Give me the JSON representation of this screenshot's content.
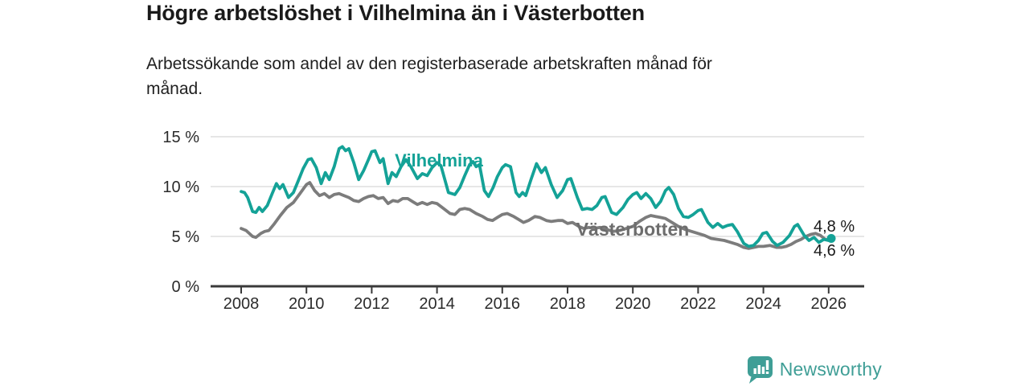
{
  "header": {
    "title": "Högre arbetslöshet i Vilhelmina än i Västerbotten",
    "subtitle": "Arbetssökande som andel av den registerbaserade arbetskraften månad för\nmånad."
  },
  "branding": {
    "logo_text": "Newsworthy",
    "logo_icon": "bar-chart-speech-bubble",
    "color": "#3f9e96"
  },
  "chart_data": {
    "type": "line",
    "title": "Högre arbetslöshet i Vilhelmina än i Västerbotten",
    "subtitle": "Arbetssökande som andel av den registerbaserade arbetskraften månad för månad.",
    "unit": "%",
    "grid": "horizontal",
    "legend": "inline-labels",
    "x_axis": {
      "ticks": [
        "2008",
        "2010",
        "2012",
        "2014",
        "2016",
        "2018",
        "2020",
        "2022",
        "2024",
        "2026"
      ],
      "tick_years": [
        2008,
        2010,
        2012,
        2014,
        2016,
        2018,
        2020,
        2022,
        2024,
        2026
      ],
      "range_years": [
        2007.1,
        2027.1
      ]
    },
    "y_axis": {
      "tick_labels": [
        "0 %",
        "5 %",
        "10 %",
        "15 %"
      ],
      "tick_values": [
        0,
        5,
        10,
        15
      ],
      "range": [
        0,
        16.6
      ]
    },
    "axis_colors": {
      "grid": "#dedede",
      "axis": "#3a3a3a",
      "tick_text": "#2b2b2b"
    },
    "series": [
      {
        "name": "Vilhelmina",
        "color": "#14a297",
        "label_color": "#14a297",
        "end_label": "4,8 %",
        "end_value": 4.8,
        "end_dot": true,
        "points": [
          [
            2008.0,
            9.5
          ],
          [
            2008.1,
            9.4
          ],
          [
            2008.2,
            8.9
          ],
          [
            2008.35,
            7.5
          ],
          [
            2008.45,
            7.4
          ],
          [
            2008.55,
            7.9
          ],
          [
            2008.65,
            7.5
          ],
          [
            2008.8,
            8.1
          ],
          [
            2008.95,
            9.3
          ],
          [
            2009.08,
            10.3
          ],
          [
            2009.18,
            9.8
          ],
          [
            2009.28,
            10.2
          ],
          [
            2009.45,
            8.9
          ],
          [
            2009.6,
            9.4
          ],
          [
            2009.75,
            10.6
          ],
          [
            2009.9,
            11.8
          ],
          [
            2010.05,
            12.7
          ],
          [
            2010.15,
            12.8
          ],
          [
            2010.3,
            11.9
          ],
          [
            2010.45,
            10.3
          ],
          [
            2010.58,
            11.4
          ],
          [
            2010.7,
            10.7
          ],
          [
            2010.85,
            12.0
          ],
          [
            2011.0,
            13.8
          ],
          [
            2011.1,
            14.0
          ],
          [
            2011.2,
            13.6
          ],
          [
            2011.3,
            13.8
          ],
          [
            2011.45,
            12.4
          ],
          [
            2011.6,
            10.7
          ],
          [
            2011.75,
            11.6
          ],
          [
            2011.9,
            12.7
          ],
          [
            2012.0,
            13.5
          ],
          [
            2012.1,
            13.6
          ],
          [
            2012.25,
            12.4
          ],
          [
            2012.35,
            12.8
          ],
          [
            2012.5,
            10.3
          ],
          [
            2012.62,
            11.4
          ],
          [
            2012.75,
            11.0
          ],
          [
            2012.9,
            12.0
          ],
          [
            2013.05,
            12.7
          ],
          [
            2013.2,
            12.0
          ],
          [
            2013.4,
            10.8
          ],
          [
            2013.55,
            11.3
          ],
          [
            2013.7,
            11.1
          ],
          [
            2013.85,
            11.9
          ],
          [
            2014.0,
            12.4
          ],
          [
            2014.12,
            12.1
          ],
          [
            2014.35,
            9.4
          ],
          [
            2014.55,
            9.2
          ],
          [
            2014.7,
            9.9
          ],
          [
            2014.85,
            11.1
          ],
          [
            2015.0,
            12.2
          ],
          [
            2015.1,
            12.5
          ],
          [
            2015.2,
            12.0
          ],
          [
            2015.3,
            12.2
          ],
          [
            2015.45,
            9.6
          ],
          [
            2015.58,
            9.0
          ],
          [
            2015.72,
            9.9
          ],
          [
            2015.85,
            11.0
          ],
          [
            2016.0,
            11.9
          ],
          [
            2016.1,
            12.2
          ],
          [
            2016.25,
            12.0
          ],
          [
            2016.42,
            9.4
          ],
          [
            2016.52,
            9.0
          ],
          [
            2016.62,
            9.4
          ],
          [
            2016.72,
            9.1
          ],
          [
            2016.88,
            10.7
          ],
          [
            2017.05,
            12.3
          ],
          [
            2017.2,
            11.4
          ],
          [
            2017.32,
            11.9
          ],
          [
            2017.5,
            10.2
          ],
          [
            2017.68,
            8.9
          ],
          [
            2017.85,
            9.6
          ],
          [
            2018.0,
            10.7
          ],
          [
            2018.1,
            10.8
          ],
          [
            2018.3,
            8.9
          ],
          [
            2018.45,
            7.7
          ],
          [
            2018.6,
            7.8
          ],
          [
            2018.75,
            7.7
          ],
          [
            2018.9,
            8.1
          ],
          [
            2019.05,
            8.9
          ],
          [
            2019.15,
            9.0
          ],
          [
            2019.35,
            7.4
          ],
          [
            2019.5,
            7.2
          ],
          [
            2019.7,
            7.9
          ],
          [
            2019.85,
            8.7
          ],
          [
            2020.0,
            9.2
          ],
          [
            2020.12,
            9.4
          ],
          [
            2020.25,
            8.8
          ],
          [
            2020.4,
            9.3
          ],
          [
            2020.55,
            8.8
          ],
          [
            2020.7,
            7.9
          ],
          [
            2020.85,
            8.5
          ],
          [
            2021.0,
            9.6
          ],
          [
            2021.1,
            9.9
          ],
          [
            2021.25,
            9.2
          ],
          [
            2021.4,
            7.8
          ],
          [
            2021.55,
            7.0
          ],
          [
            2021.7,
            6.9
          ],
          [
            2021.85,
            7.2
          ],
          [
            2022.0,
            7.6
          ],
          [
            2022.1,
            7.7
          ],
          [
            2022.3,
            6.4
          ],
          [
            2022.45,
            5.9
          ],
          [
            2022.6,
            6.3
          ],
          [
            2022.75,
            5.9
          ],
          [
            2022.9,
            6.1
          ],
          [
            2023.05,
            6.2
          ],
          [
            2023.2,
            5.5
          ],
          [
            2023.4,
            4.3
          ],
          [
            2023.55,
            4.0
          ],
          [
            2023.7,
            4.1
          ],
          [
            2023.85,
            4.6
          ],
          [
            2023.98,
            5.3
          ],
          [
            2024.1,
            5.4
          ],
          [
            2024.28,
            4.5
          ],
          [
            2024.42,
            4.1
          ],
          [
            2024.6,
            4.4
          ],
          [
            2024.8,
            5.1
          ],
          [
            2024.95,
            6.0
          ],
          [
            2025.05,
            6.2
          ],
          [
            2025.25,
            5.1
          ],
          [
            2025.4,
            4.6
          ],
          [
            2025.55,
            4.9
          ],
          [
            2025.7,
            4.4
          ],
          [
            2025.85,
            4.7
          ],
          [
            2026.0,
            4.6
          ],
          [
            2026.08,
            4.8
          ]
        ]
      },
      {
        "name": "Västerbotten",
        "color": "#7c7c7c",
        "label_color": "#6d6d6d",
        "end_label": "4,6 %",
        "end_value": 4.6,
        "end_dot": false,
        "points": [
          [
            2008.0,
            5.8
          ],
          [
            2008.15,
            5.6
          ],
          [
            2008.35,
            5.0
          ],
          [
            2008.45,
            4.9
          ],
          [
            2008.6,
            5.3
          ],
          [
            2008.72,
            5.5
          ],
          [
            2008.85,
            5.6
          ],
          [
            2009.0,
            6.2
          ],
          [
            2009.2,
            7.1
          ],
          [
            2009.4,
            7.9
          ],
          [
            2009.6,
            8.4
          ],
          [
            2009.8,
            9.3
          ],
          [
            2010.0,
            10.2
          ],
          [
            2010.1,
            10.4
          ],
          [
            2010.25,
            9.6
          ],
          [
            2010.4,
            9.1
          ],
          [
            2010.55,
            9.3
          ],
          [
            2010.7,
            8.9
          ],
          [
            2010.85,
            9.2
          ],
          [
            2011.0,
            9.3
          ],
          [
            2011.15,
            9.1
          ],
          [
            2011.3,
            8.9
          ],
          [
            2011.45,
            8.6
          ],
          [
            2011.6,
            8.5
          ],
          [
            2011.75,
            8.8
          ],
          [
            2011.9,
            9.0
          ],
          [
            2012.05,
            9.1
          ],
          [
            2012.2,
            8.8
          ],
          [
            2012.35,
            8.9
          ],
          [
            2012.5,
            8.3
          ],
          [
            2012.65,
            8.6
          ],
          [
            2012.8,
            8.5
          ],
          [
            2012.95,
            8.8
          ],
          [
            2013.1,
            8.8
          ],
          [
            2013.25,
            8.5
          ],
          [
            2013.4,
            8.2
          ],
          [
            2013.55,
            8.4
          ],
          [
            2013.7,
            8.2
          ],
          [
            2013.85,
            8.4
          ],
          [
            2014.0,
            8.3
          ],
          [
            2014.2,
            7.8
          ],
          [
            2014.4,
            7.3
          ],
          [
            2014.55,
            7.2
          ],
          [
            2014.7,
            7.7
          ],
          [
            2014.85,
            7.8
          ],
          [
            2015.0,
            7.7
          ],
          [
            2015.2,
            7.3
          ],
          [
            2015.4,
            7.0
          ],
          [
            2015.55,
            6.7
          ],
          [
            2015.7,
            6.6
          ],
          [
            2015.85,
            6.9
          ],
          [
            2016.0,
            7.2
          ],
          [
            2016.15,
            7.3
          ],
          [
            2016.35,
            7.0
          ],
          [
            2016.5,
            6.7
          ],
          [
            2016.65,
            6.4
          ],
          [
            2016.8,
            6.6
          ],
          [
            2017.0,
            7.0
          ],
          [
            2017.15,
            6.9
          ],
          [
            2017.35,
            6.6
          ],
          [
            2017.5,
            6.5
          ],
          [
            2017.7,
            6.6
          ],
          [
            2017.85,
            6.6
          ],
          [
            2018.0,
            6.3
          ],
          [
            2018.15,
            6.4
          ],
          [
            2018.35,
            6.0
          ],
          [
            2018.5,
            5.8
          ],
          [
            2018.65,
            5.9
          ],
          [
            2018.8,
            5.8
          ],
          [
            2019.0,
            5.9
          ],
          [
            2019.2,
            5.7
          ],
          [
            2019.4,
            5.5
          ],
          [
            2019.6,
            5.6
          ],
          [
            2019.8,
            5.8
          ],
          [
            2020.0,
            6.0
          ],
          [
            2020.2,
            6.5
          ],
          [
            2020.4,
            6.9
          ],
          [
            2020.55,
            7.1
          ],
          [
            2020.7,
            7.0
          ],
          [
            2020.85,
            6.9
          ],
          [
            2021.0,
            6.8
          ],
          [
            2021.2,
            6.4
          ],
          [
            2021.4,
            6.0
          ],
          [
            2021.6,
            5.7
          ],
          [
            2021.8,
            5.5
          ],
          [
            2022.0,
            5.3
          ],
          [
            2022.2,
            5.1
          ],
          [
            2022.4,
            4.8
          ],
          [
            2022.6,
            4.7
          ],
          [
            2022.8,
            4.6
          ],
          [
            2023.0,
            4.4
          ],
          [
            2023.2,
            4.2
          ],
          [
            2023.4,
            3.9
          ],
          [
            2023.55,
            3.8
          ],
          [
            2023.7,
            3.9
          ],
          [
            2023.85,
            4.0
          ],
          [
            2024.0,
            4.0
          ],
          [
            2024.2,
            4.1
          ],
          [
            2024.4,
            3.9
          ],
          [
            2024.55,
            3.9
          ],
          [
            2024.7,
            4.0
          ],
          [
            2024.85,
            4.2
          ],
          [
            2025.0,
            4.5
          ],
          [
            2025.15,
            4.7
          ],
          [
            2025.3,
            5.0
          ],
          [
            2025.45,
            5.2
          ],
          [
            2025.6,
            5.3
          ],
          [
            2025.75,
            5.1
          ],
          [
            2025.9,
            4.7
          ],
          [
            2026.08,
            4.6
          ]
        ]
      }
    ]
  }
}
